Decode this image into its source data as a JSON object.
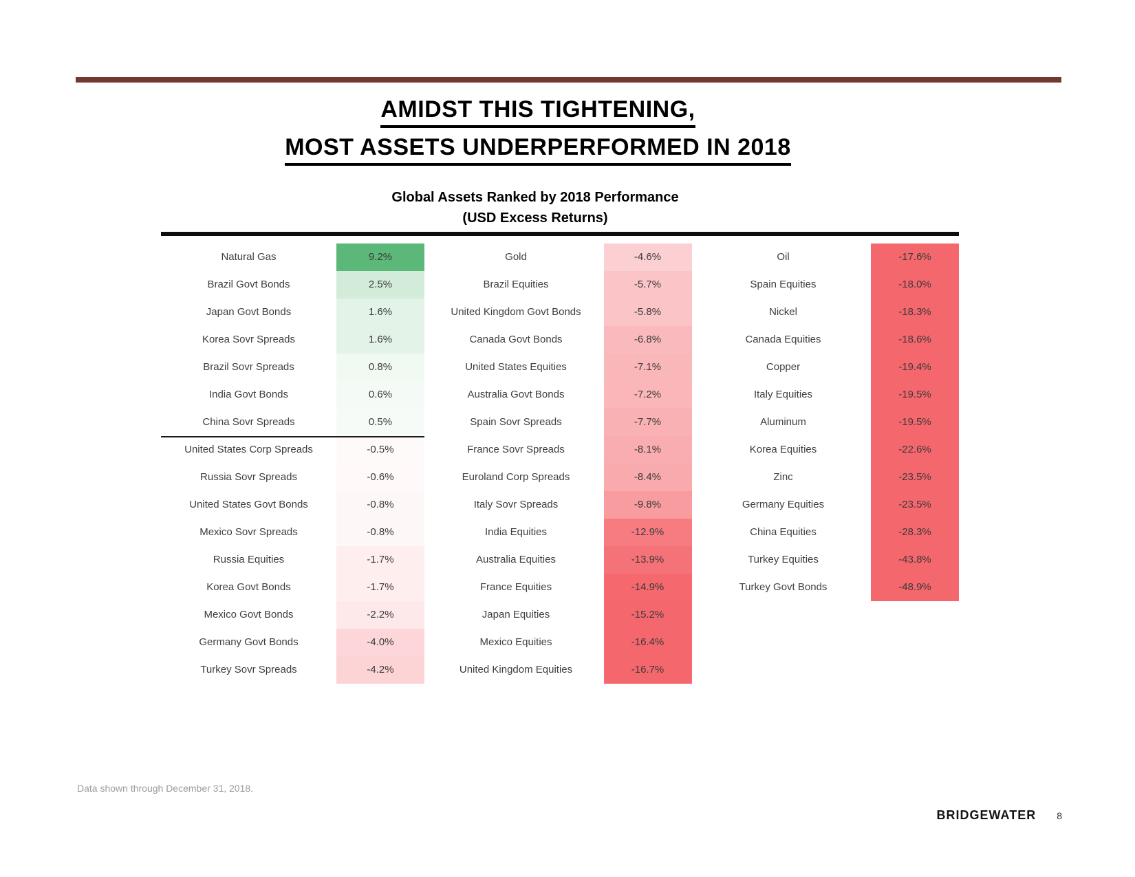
{
  "slide": {
    "title_line1": "AMIDST THIS TIGHTENING,",
    "title_line2": "MOST ASSETS UNDERPERFORMED IN 2018",
    "footnote": "Data shown through December 31, 2018.",
    "logo_text": "BRIDGEWATER",
    "page_number": "8",
    "accent_rule_color": "#713931"
  },
  "chart_data": {
    "type": "table",
    "title": "Global Assets Ranked by 2018 Performance",
    "subtitle": "(USD Excess Returns)",
    "value_suffix": "%",
    "layout": "three_column_ranked_list",
    "color_scale": {
      "positive_max_color": "#5CB878",
      "negative_max_color": "#F4676D",
      "neutral_color": "#FFFFFF",
      "positive_saturation": 9.2,
      "negative_saturation": 15
    },
    "columns": [
      {
        "divider_after_row": 7,
        "rows": [
          {
            "label": "Natural Gas",
            "value": 9.2
          },
          {
            "label": "Brazil Govt Bonds",
            "value": 2.5
          },
          {
            "label": "Japan Govt Bonds",
            "value": 1.6
          },
          {
            "label": "Korea Sovr Spreads",
            "value": 1.6
          },
          {
            "label": "Brazil Sovr Spreads",
            "value": 0.8
          },
          {
            "label": "India Govt Bonds",
            "value": 0.6
          },
          {
            "label": "China Sovr Spreads",
            "value": 0.5
          },
          {
            "label": "United States Corp Spreads",
            "value": -0.5
          },
          {
            "label": "Russia Sovr Spreads",
            "value": -0.6
          },
          {
            "label": "United States Govt Bonds",
            "value": -0.8
          },
          {
            "label": "Mexico Sovr Spreads",
            "value": -0.8
          },
          {
            "label": "Russia Equities",
            "value": -1.7
          },
          {
            "label": "Korea Govt Bonds",
            "value": -1.7
          },
          {
            "label": "Mexico Govt Bonds",
            "value": -2.2
          },
          {
            "label": "Germany Govt Bonds",
            "value": -4.0
          },
          {
            "label": "Turkey Sovr Spreads",
            "value": -4.2
          }
        ]
      },
      {
        "rows": [
          {
            "label": "Gold",
            "value": -4.6
          },
          {
            "label": "Brazil Equities",
            "value": -5.7
          },
          {
            "label": "United Kingdom Govt Bonds",
            "value": -5.8
          },
          {
            "label": "Canada Govt Bonds",
            "value": -6.8
          },
          {
            "label": "United States Equities",
            "value": -7.1
          },
          {
            "label": "Australia Govt Bonds",
            "value": -7.2
          },
          {
            "label": "Spain Sovr Spreads",
            "value": -7.7
          },
          {
            "label": "France Sovr Spreads",
            "value": -8.1
          },
          {
            "label": "Euroland Corp Spreads",
            "value": -8.4
          },
          {
            "label": "Italy Sovr Spreads",
            "value": -9.8
          },
          {
            "label": "India Equities",
            "value": -12.9
          },
          {
            "label": "Australia Equities",
            "value": -13.9
          },
          {
            "label": "France Equities",
            "value": -14.9
          },
          {
            "label": "Japan Equities",
            "value": -15.2
          },
          {
            "label": "Mexico Equities",
            "value": -16.4
          },
          {
            "label": "United Kingdom Equities",
            "value": -16.7
          }
        ]
      },
      {
        "rows": [
          {
            "label": "Oil",
            "value": -17.6
          },
          {
            "label": "Spain Equities",
            "value": -18.0
          },
          {
            "label": "Nickel",
            "value": -18.3
          },
          {
            "label": "Canada Equities",
            "value": -18.6
          },
          {
            "label": "Copper",
            "value": -19.4
          },
          {
            "label": "Italy Equities",
            "value": -19.5
          },
          {
            "label": "Aluminum",
            "value": -19.5
          },
          {
            "label": "Korea Equities",
            "value": -22.6
          },
          {
            "label": "Zinc",
            "value": -23.5
          },
          {
            "label": "Germany Equities",
            "value": -23.5
          },
          {
            "label": "China Equities",
            "value": -28.3
          },
          {
            "label": "Turkey Equities",
            "value": -43.8
          },
          {
            "label": "Turkey Govt Bonds",
            "value": -48.9
          }
        ]
      }
    ]
  }
}
